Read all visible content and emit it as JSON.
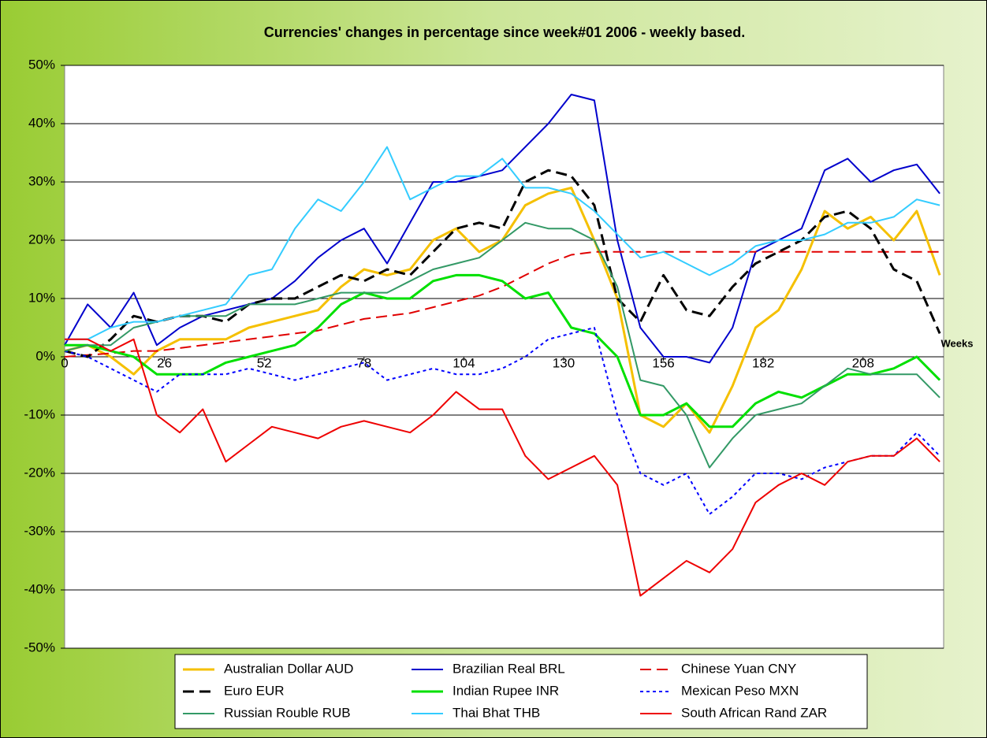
{
  "chart_data": {
    "type": "line",
    "title": "Currencies' changes in percentage since week#01 2006 - weekly based.",
    "x_label": "Weeks",
    "x": [
      0,
      6,
      12,
      18,
      24,
      30,
      36,
      42,
      48,
      54,
      60,
      66,
      72,
      78,
      84,
      90,
      96,
      102,
      108,
      114,
      120,
      126,
      132,
      138,
      144,
      150,
      156,
      162,
      168,
      174,
      180,
      186,
      192,
      198,
      204,
      210,
      216,
      222,
      228
    ],
    "xlim": [
      0,
      229
    ],
    "xticks": [
      0,
      26,
      52,
      78,
      104,
      130,
      156,
      182,
      208
    ],
    "ylim": [
      -50,
      50
    ],
    "yticks": [
      {
        "value": -50,
        "label": "-50%"
      },
      {
        "value": -40,
        "label": "-40%"
      },
      {
        "value": -30,
        "label": "-30%"
      },
      {
        "value": -20,
        "label": "-20%"
      },
      {
        "value": -10,
        "label": "-10%"
      },
      {
        "value": 0,
        "label": "0%"
      },
      {
        "value": 10,
        "label": "10%"
      },
      {
        "value": 20,
        "label": "20%"
      },
      {
        "value": 30,
        "label": "30%"
      },
      {
        "value": 40,
        "label": "40%"
      },
      {
        "value": 50,
        "label": "50%"
      }
    ],
    "grid": true,
    "legend": "bottom",
    "series": [
      {
        "name": "Australian Dollar AUD",
        "color": "#f5c000",
        "width": 3,
        "dash": "solid",
        "values": [
          1,
          2,
          0,
          -3,
          1,
          3,
          3,
          3,
          5,
          6,
          7,
          8,
          12,
          15,
          14,
          15,
          20,
          22,
          18,
          20,
          26,
          28,
          29,
          20,
          10,
          -10,
          -12,
          -8,
          -13,
          -5,
          5,
          8,
          15,
          25,
          22,
          24,
          20,
          25,
          14
        ]
      },
      {
        "name": "Brazilian Real BRL",
        "color": "#0000cc",
        "width": 2,
        "dash": "solid",
        "values": [
          2,
          9,
          5,
          11,
          2,
          5,
          7,
          8,
          9,
          10,
          13,
          17,
          20,
          22,
          16,
          23,
          30,
          30,
          31,
          32,
          36,
          40,
          45,
          44,
          20,
          5,
          0,
          0,
          -1,
          5,
          18,
          20,
          22,
          32,
          34,
          30,
          32,
          33,
          28
        ]
      },
      {
        "name": "Chinese Yuan CNY",
        "color": "#e00000",
        "width": 2,
        "dash": "dashed",
        "values": [
          0,
          0.3,
          0.6,
          1,
          1,
          1.5,
          2,
          2.5,
          3,
          3.5,
          4,
          4.5,
          5.5,
          6.5,
          7,
          7.5,
          8.5,
          9.5,
          10.5,
          12,
          14,
          16,
          17.5,
          18,
          18,
          18,
          18,
          18,
          18,
          18,
          18,
          18,
          18,
          18,
          18,
          18,
          18,
          18,
          18
        ]
      },
      {
        "name": "Euro EUR",
        "color": "#000000",
        "width": 3,
        "dash": "dashed",
        "values": [
          1,
          0,
          3,
          7,
          6,
          7,
          7,
          6,
          9,
          10,
          10,
          12,
          14,
          13,
          15,
          14,
          18,
          22,
          23,
          22,
          30,
          32,
          31,
          26,
          10,
          6,
          14,
          8,
          7,
          12,
          16,
          18,
          20,
          24,
          25,
          22,
          15,
          13,
          4
        ]
      },
      {
        "name": "Indian Rupee INR",
        "color": "#00e000",
        "width": 3,
        "dash": "solid",
        "values": [
          2,
          2,
          1,
          0,
          -3,
          -3,
          -3,
          -1,
          0,
          1,
          2,
          5,
          9,
          11,
          10,
          10,
          13,
          14,
          14,
          13,
          10,
          11,
          5,
          4,
          0,
          -10,
          -10,
          -8,
          -12,
          -12,
          -8,
          -6,
          -7,
          -5,
          -3,
          -3,
          -2,
          0,
          -4
        ]
      },
      {
        "name": "Mexican Peso MXN",
        "color": "#0000ff",
        "width": 2,
        "dash": "dotted",
        "values": [
          1,
          0,
          -2,
          -4,
          -6,
          -3,
          -3,
          -3,
          -2,
          -3,
          -4,
          -3,
          -2,
          -1,
          -4,
          -3,
          -2,
          -3,
          -3,
          -2,
          0,
          3,
          4,
          5,
          -10,
          -20,
          -22,
          -20,
          -27,
          -24,
          -20,
          -20,
          -21,
          -19,
          -18,
          -17,
          -17,
          -13,
          -17
        ]
      },
      {
        "name": "Russian Rouble RUB",
        "color": "#339966",
        "width": 2,
        "dash": "solid",
        "values": [
          1,
          2,
          2,
          5,
          6,
          7,
          7,
          7,
          9,
          9,
          9,
          10,
          11,
          11,
          11,
          13,
          15,
          16,
          17,
          20,
          23,
          22,
          22,
          20,
          12,
          -4,
          -5,
          -10,
          -19,
          -14,
          -10,
          -9,
          -8,
          -5,
          -2,
          -3,
          -3,
          -3,
          -7
        ]
      },
      {
        "name": "Thai Bhat THB",
        "color": "#33ccff",
        "width": 2,
        "dash": "solid",
        "values": [
          3,
          3,
          5,
          6,
          6,
          7,
          8,
          9,
          14,
          15,
          22,
          27,
          25,
          30,
          36,
          27,
          29,
          31,
          31,
          34,
          29,
          29,
          28,
          25,
          21,
          17,
          18,
          16,
          14,
          16,
          19,
          20,
          20,
          21,
          23,
          23,
          24,
          27,
          26
        ]
      },
      {
        "name": "South African Rand ZAR",
        "color": "#ee0000",
        "width": 2,
        "dash": "solid",
        "values": [
          3,
          3,
          1,
          3,
          -10,
          -13,
          -9,
          -18,
          -15,
          -12,
          -13,
          -14,
          -12,
          -11,
          -12,
          -13,
          -10,
          -6,
          -9,
          -9,
          -17,
          -21,
          -19,
          -17,
          -22,
          -41,
          -38,
          -35,
          -37,
          -33,
          -25,
          -22,
          -20,
          -22,
          -18,
          -17,
          -17,
          -14,
          -18
        ]
      }
    ]
  }
}
